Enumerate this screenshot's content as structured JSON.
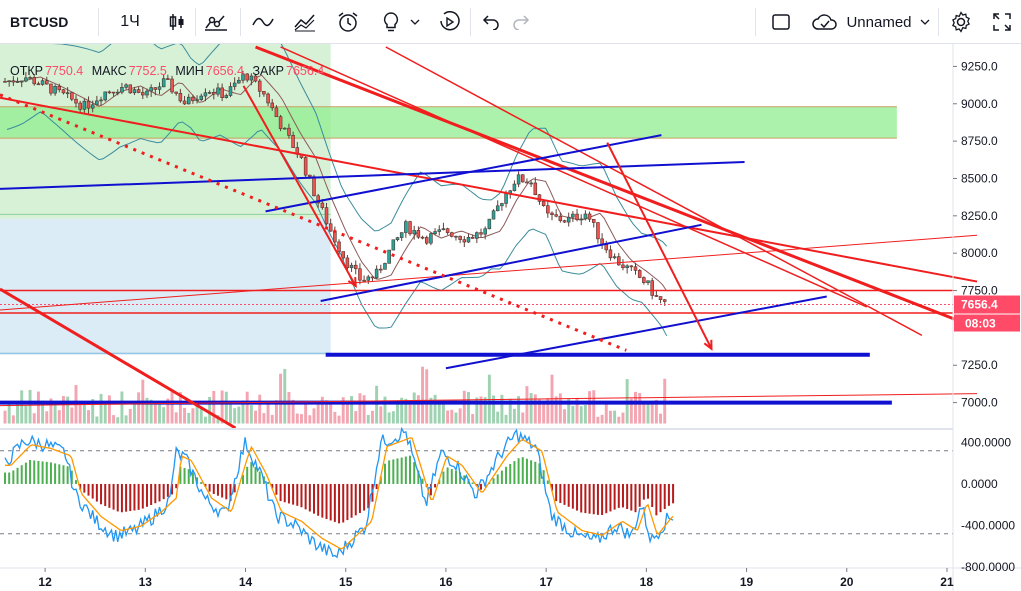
{
  "toolbar": {
    "symbol": "BTCUSD",
    "interval": "1Ч",
    "layout_name": "Unnamed",
    "icons": [
      "candles-icon",
      "indicators-icon",
      "line-tool-icon",
      "compare-icon",
      "alert-icon",
      "idea-icon",
      "replay-icon",
      "undo-icon",
      "redo-icon",
      "layout-square-icon",
      "cloud-icon",
      "settings-icon",
      "fullscreen-icon"
    ]
  },
  "legend": {
    "open_label": "ОТКР",
    "open": "7750.4",
    "high_label": "МАКС",
    "high": "7752.5",
    "low_label": "МИН",
    "low": "7656.4",
    "close_label": "ЗАКР",
    "close": "7656.4"
  },
  "chart_data": {
    "type": "candlestick",
    "symbol": "BTCUSD",
    "timeframe": "1Ч",
    "price_axis": {
      "ticks": [
        9250,
        9000,
        8750,
        8500,
        8250,
        8000,
        7750,
        7250,
        7000
      ],
      "range": [
        6830,
        9400
      ]
    },
    "time_axis": {
      "ticks": [
        "12",
        "13",
        "14",
        "15",
        "16",
        "17",
        "18",
        "19",
        "20",
        "21"
      ],
      "range_days": [
        11.55,
        21.06
      ]
    },
    "last_price": {
      "value": 7656.4,
      "label": "7656.4",
      "countdown": "08:03",
      "color": "#ff4a68"
    },
    "horizontal_levels": [
      {
        "price": 7750,
        "color": "#f01e1e"
      },
      {
        "price": 7600,
        "color": "#f01e1e"
      },
      {
        "price": 7320,
        "color": "#1010d0"
      },
      {
        "price": 7000,
        "color": "#1010d0"
      }
    ],
    "zones": [
      {
        "price_from": 8770,
        "price_to": 8980,
        "color": "#90ee90"
      }
    ],
    "close_path": [
      [
        11.62,
        9150
      ],
      [
        11.8,
        9180
      ],
      [
        12.0,
        9120
      ],
      [
        12.2,
        9050
      ],
      [
        12.4,
        8980
      ],
      [
        12.6,
        9080
      ],
      [
        12.8,
        9120
      ],
      [
        13.0,
        9050
      ],
      [
        13.2,
        9150
      ],
      [
        13.4,
        9000
      ],
      [
        13.6,
        9100
      ],
      [
        13.8,
        9060
      ],
      [
        14.0,
        9200
      ],
      [
        14.2,
        9050
      ],
      [
        14.4,
        8800
      ],
      [
        14.55,
        8640
      ],
      [
        14.7,
        8380
      ],
      [
        14.85,
        8150
      ],
      [
        15.0,
        7950
      ],
      [
        15.15,
        7820
      ],
      [
        15.3,
        7850
      ],
      [
        15.45,
        8030
      ],
      [
        15.6,
        8180
      ],
      [
        15.8,
        8100
      ],
      [
        16.0,
        8150
      ],
      [
        16.2,
        8100
      ],
      [
        16.4,
        8150
      ],
      [
        16.55,
        8350
      ],
      [
        16.7,
        8500
      ],
      [
        16.85,
        8480
      ],
      [
        17.0,
        8250
      ],
      [
        17.2,
        8220
      ],
      [
        17.4,
        8270
      ],
      [
        17.55,
        8080
      ],
      [
        17.7,
        7950
      ],
      [
        17.85,
        7880
      ],
      [
        18.0,
        7800
      ],
      [
        18.1,
        7700
      ],
      [
        18.2,
        7656
      ]
    ],
    "volume": {
      "colors": {
        "up": "#9ed2b1",
        "down": "#f3a5b1"
      }
    },
    "oscillator": {
      "ticks": [
        400,
        0,
        -400,
        -800
      ],
      "tick_labels": [
        "400.0000",
        "0.0000",
        "-400.0000",
        "-800.0000"
      ],
      "range": [
        -810,
        520
      ],
      "levels": [
        320,
        -480
      ],
      "path": [
        [
          11.6,
          200
        ],
        [
          11.8,
          420
        ],
        [
          12.0,
          380
        ],
        [
          12.2,
          300
        ],
        [
          12.3,
          -100
        ],
        [
          12.5,
          -350
        ],
        [
          12.7,
          -500
        ],
        [
          12.9,
          -450
        ],
        [
          13.1,
          -300
        ],
        [
          13.25,
          -150
        ],
        [
          13.3,
          300
        ],
        [
          13.4,
          250
        ],
        [
          13.6,
          -150
        ],
        [
          13.8,
          -300
        ],
        [
          13.95,
          250
        ],
        [
          14.0,
          400
        ],
        [
          14.15,
          100
        ],
        [
          14.3,
          -300
        ],
        [
          14.5,
          -400
        ],
        [
          14.7,
          -580
        ],
        [
          14.9,
          -700
        ],
        [
          15.0,
          -600
        ],
        [
          15.2,
          -400
        ],
        [
          15.35,
          400
        ],
        [
          15.6,
          500
        ],
        [
          15.8,
          -200
        ],
        [
          15.95,
          300
        ],
        [
          16.1,
          200
        ],
        [
          16.3,
          -100
        ],
        [
          16.55,
          300
        ],
        [
          16.7,
          480
        ],
        [
          16.9,
          350
        ],
        [
          17.05,
          -300
        ],
        [
          17.3,
          -500
        ],
        [
          17.5,
          -550
        ],
        [
          17.7,
          -400
        ],
        [
          17.85,
          -500
        ],
        [
          17.95,
          -200
        ],
        [
          18.05,
          -550
        ],
        [
          18.2,
          -350
        ],
        [
          18.28,
          -300
        ]
      ],
      "histogram": {
        "colors": {
          "up": "#4caf50",
          "down": "#b71c1c"
        }
      }
    }
  }
}
